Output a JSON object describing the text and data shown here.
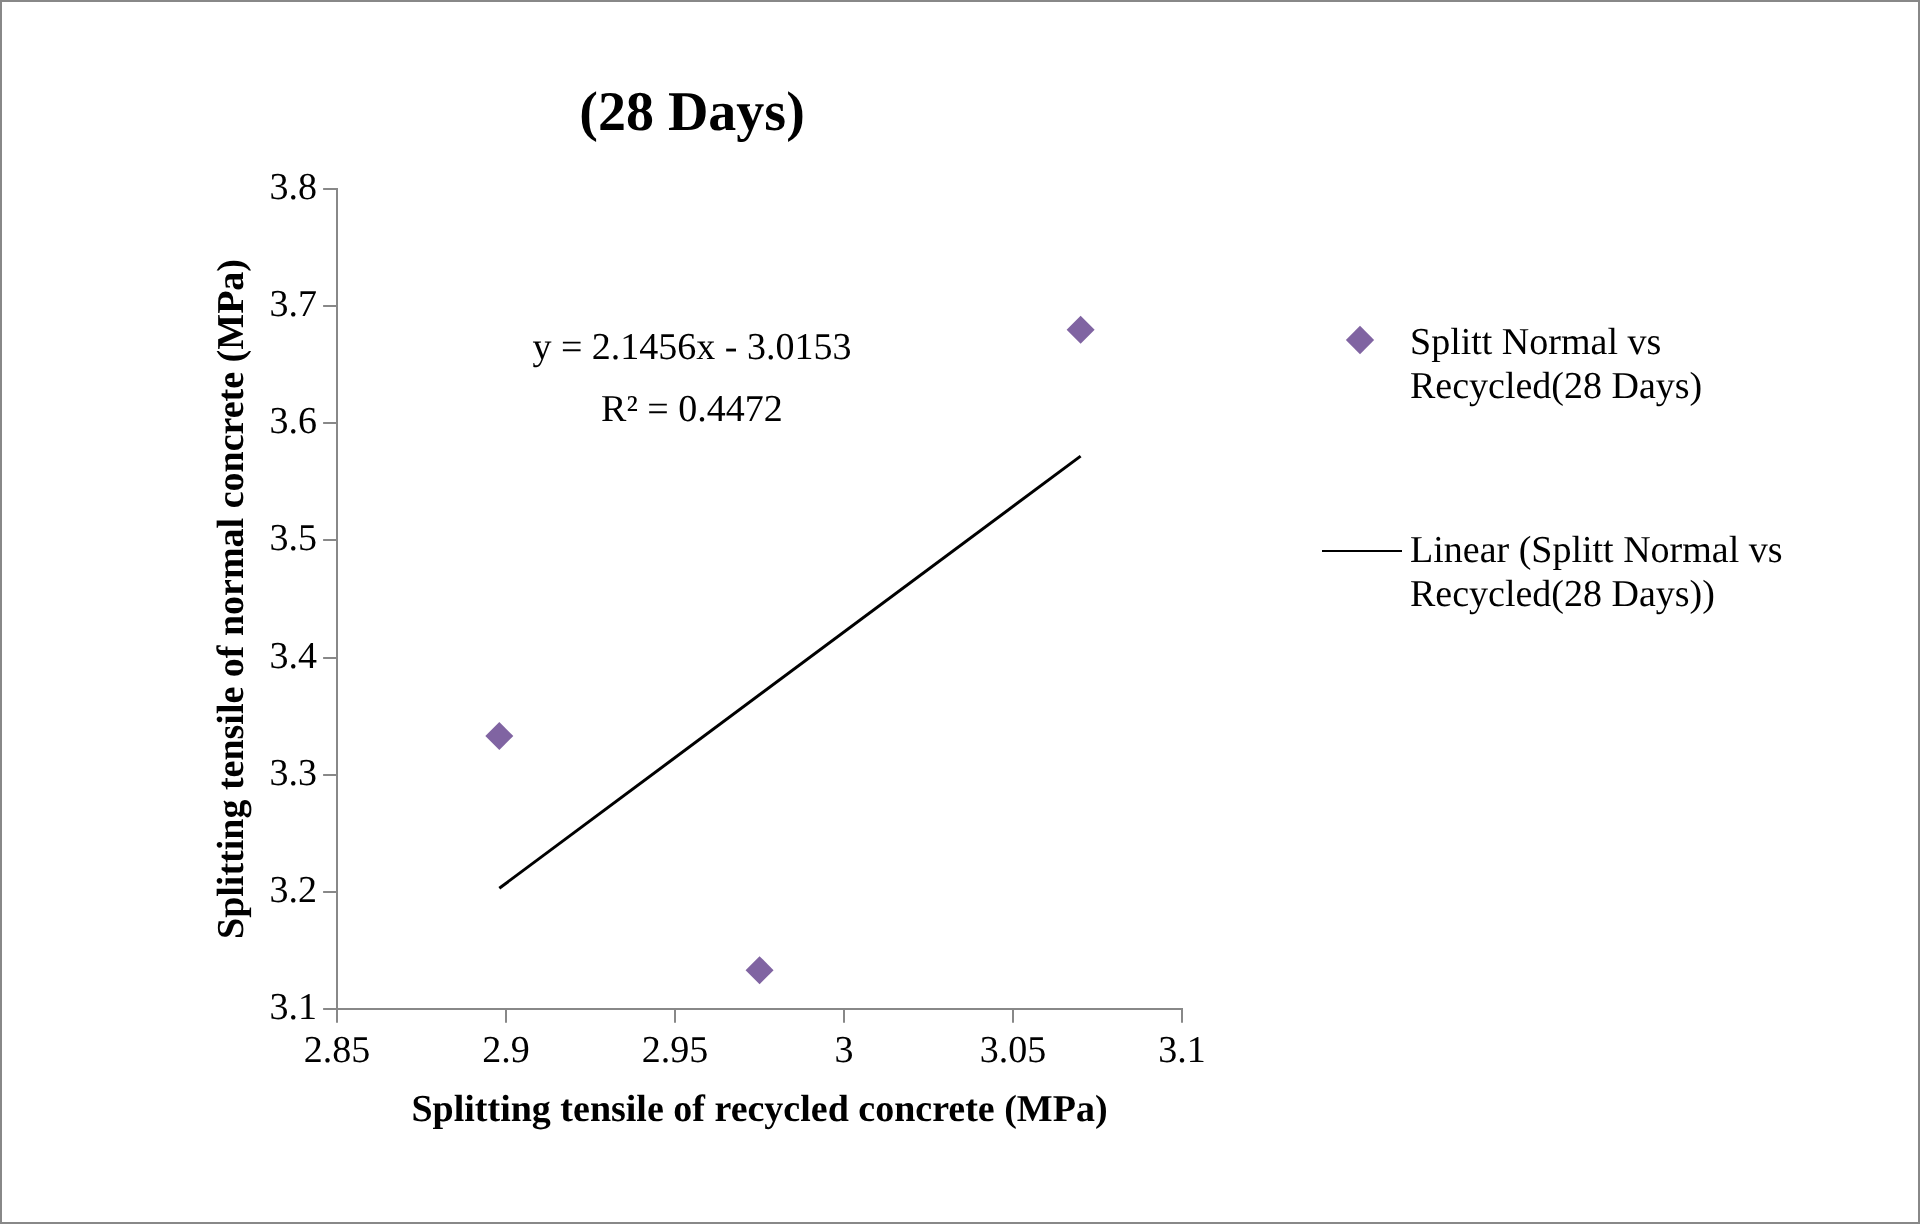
{
  "chart_data": {
    "type": "scatter",
    "title": "(28 Days)",
    "xlabel": "Splitting tensile of recycled concrete (MPa)",
    "ylabel": "Splitting tensile of normal concrete (MPa)",
    "series": [
      {
        "name": "Splitt Normal vs Recycled(28 Days)",
        "type": "scatter",
        "color": "#8064a2",
        "marker": "diamond",
        "x": [
          2.898,
          2.975,
          3.07
        ],
        "values": [
          3.333,
          3.133,
          3.68
        ]
      },
      {
        "name": "Linear (Splitt Normal vs Recycled(28 Days))",
        "type": "line",
        "color": "#000000",
        "marker": "none",
        "line_style": "solid",
        "x": [
          2.898,
          3.07
        ],
        "values": [
          3.203,
          3.572
        ]
      }
    ],
    "xlim": [
      2.85,
      3.1
    ],
    "xticks": [
      2.85,
      2.9,
      2.95,
      3,
      3.05,
      3.1
    ],
    "ylim": [
      3.1,
      3.8
    ],
    "yticks": [
      3.1,
      3.2,
      3.3,
      3.4,
      3.5,
      3.6,
      3.7,
      3.8
    ],
    "grid": false,
    "legend": "right",
    "annotations": [
      "y = 2.1456x - 3.0153",
      "R² = 0.4472"
    ]
  }
}
